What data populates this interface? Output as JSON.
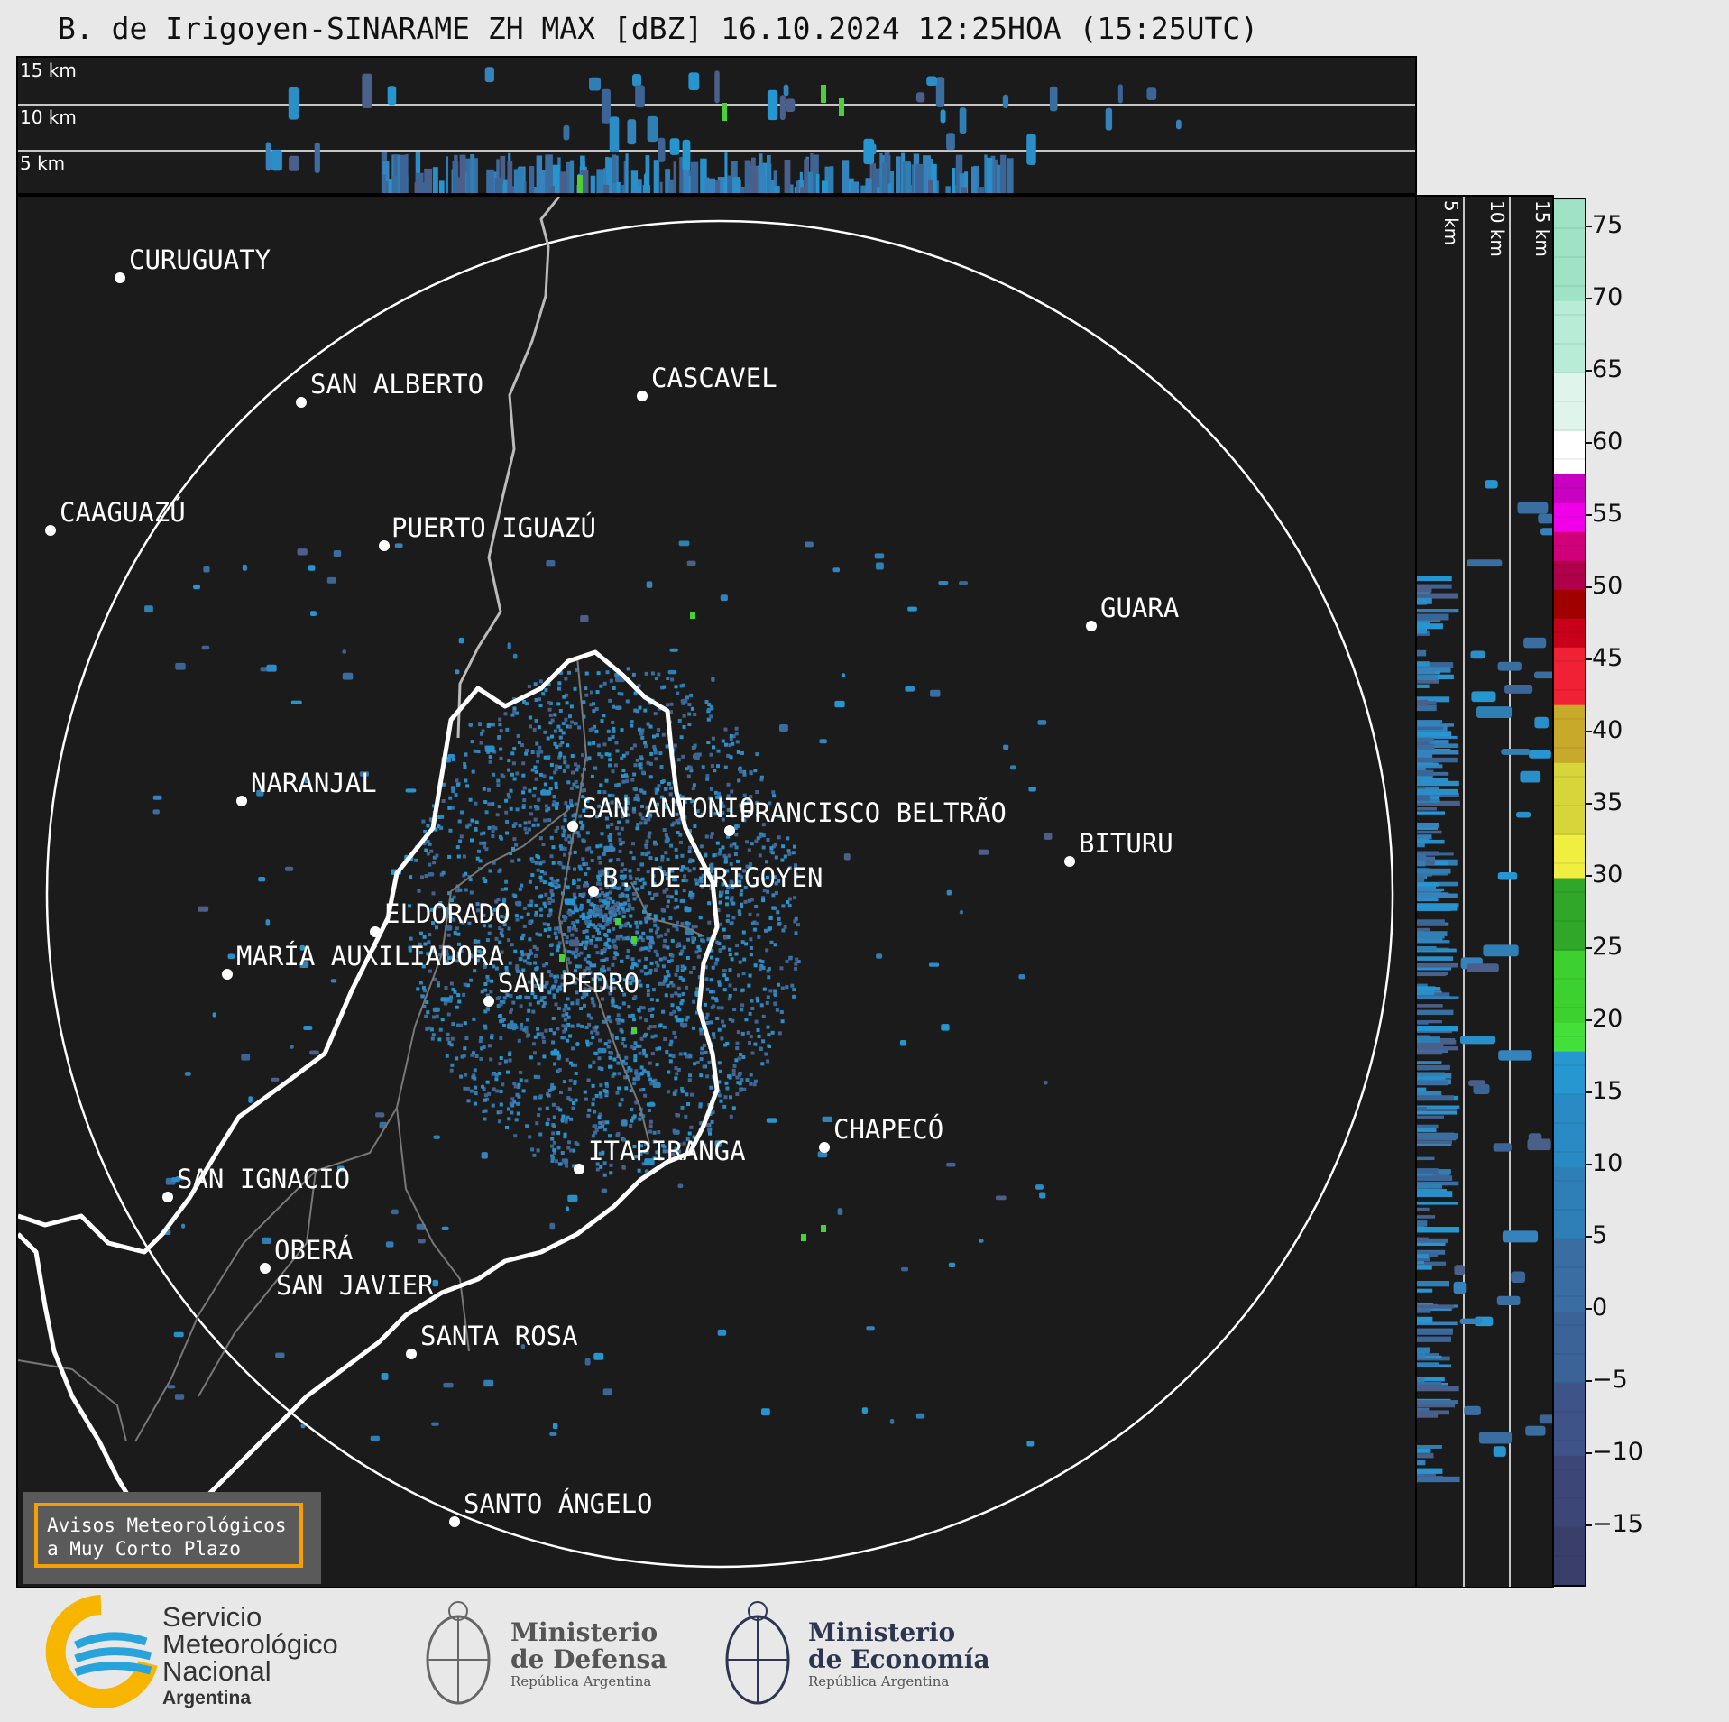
{
  "title": "B. de Irigoyen-SINARAME ZH MAX [dBZ] 16.10.2024 12:25HOA (15:25UTC)",
  "height_labels": [
    "15 km",
    "10 km",
    "5 km"
  ],
  "cities": [
    {
      "name": "CURUGUATY"
    },
    {
      "name": "SAN ALBERTO"
    },
    {
      "name": "CASCAVEL"
    },
    {
      "name": "CAAGUAZÚ"
    },
    {
      "name": "GUARA"
    },
    {
      "name": "PUERTO IGUAZÚ"
    },
    {
      "name": "NARANJAL"
    },
    {
      "name": "SAN ANTONIO"
    },
    {
      "name": "FRANCISCO BELTRÃO"
    },
    {
      "name": "BITURU"
    },
    {
      "name": "B. DE IRIGOYEN"
    },
    {
      "name": "ELDORADO"
    },
    {
      "name": "MARÍA AUXILIADORA"
    },
    {
      "name": "SAN PEDRO"
    },
    {
      "name": "CHAPECÓ"
    },
    {
      "name": "ITAPIRANGA"
    },
    {
      "name": "SAN IGNACIO"
    },
    {
      "name": "OBERÁ"
    },
    {
      "name": "SAN JAVIER"
    },
    {
      "name": "SANTA ROSA"
    },
    {
      "name": "SANTO ÁNGELO"
    }
  ],
  "colorbar": {
    "ticks": [
      "75",
      "70",
      "65",
      "60",
      "55",
      "50",
      "45",
      "40",
      "35",
      "30",
      "25",
      "20",
      "15",
      "10",
      "5",
      "0",
      "−5",
      "−10",
      "−15"
    ],
    "min": -19,
    "max": 77
  },
  "warning_box": {
    "line1": "Avisos Meteorológicos",
    "line2": "a Muy Corto Plazo"
  },
  "footer": {
    "smn": {
      "line1": "Servicio",
      "line2": "Meteorológico",
      "line3": "Nacional",
      "line4": "Argentina"
    },
    "defensa": {
      "line1": "Ministerio",
      "line2": "de Defensa",
      "line3": "República Argentina"
    },
    "economia": {
      "line1": "Ministerio",
      "line2": "de Economía",
      "line3": "República Argentina"
    }
  },
  "colors": {
    "background": "#1b1b1b",
    "page": "#e8e8e8",
    "accent_orange": "#f5a000",
    "smn_blue": "#29a3dc",
    "smn_yellow": "#f7b500"
  }
}
